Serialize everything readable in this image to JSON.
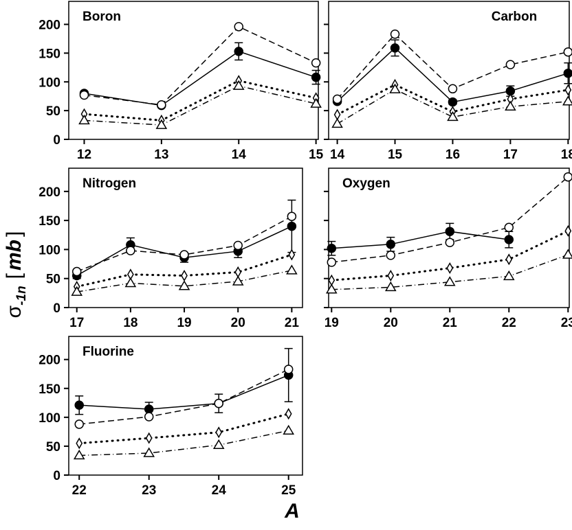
{
  "chart_data": [
    {
      "type": "line",
      "title": "Boron",
      "title_loc": "left",
      "x": [
        12,
        13,
        14,
        15
      ],
      "xlim": [
        11.8,
        15.03
      ],
      "xticks": [
        12,
        13,
        14,
        15
      ],
      "ylim": [
        0,
        240
      ],
      "yticks": [
        0,
        50,
        100,
        150,
        200
      ],
      "series": [
        {
          "color": "#000000",
          "marker": "filled-circle",
          "dash": "solid",
          "values": [
            80,
            59,
            153,
            108
          ],
          "errors": [
            3,
            3,
            15,
            12
          ]
        },
        {
          "color": "#000000",
          "marker": "circle",
          "dash": "dashed",
          "values": [
            77,
            60,
            196,
            133
          ]
        },
        {
          "color": "#000000",
          "marker": "diamond",
          "dash": "dotted",
          "values": [
            44,
            33,
            102,
            72
          ]
        },
        {
          "color": "#000000",
          "marker": "triangle",
          "dash": "dashdot",
          "values": [
            33,
            25,
            93,
            62
          ]
        }
      ]
    },
    {
      "type": "line",
      "title": "Carbon",
      "title_loc": "right",
      "x": [
        14,
        15,
        16,
        17,
        18
      ],
      "xlim": [
        13.85,
        18.02
      ],
      "xticks": [
        14,
        15,
        16,
        17,
        18
      ],
      "ylim": [
        0,
        240
      ],
      "yticks": [
        0,
        50,
        100,
        150,
        200
      ],
      "series": [
        {
          "color": "#000000",
          "marker": "filled-circle",
          "dash": "solid",
          "values": [
            66,
            159,
            65,
            84,
            115
          ],
          "errors": [
            3,
            14,
            4,
            9,
            18
          ]
        },
        {
          "color": "#000000",
          "marker": "circle",
          "dash": "dashed",
          "values": [
            70,
            183,
            88,
            130,
            152
          ]
        },
        {
          "color": "#000000",
          "marker": "diamond",
          "dash": "dotted",
          "values": [
            43,
            95,
            48,
            70,
            86
          ]
        },
        {
          "color": "#000000",
          "marker": "triangle",
          "dash": "dashdot",
          "values": [
            27,
            87,
            39,
            57,
            66
          ]
        }
      ]
    },
    {
      "type": "line",
      "title": "Nitrogen",
      "title_loc": "left",
      "x": [
        17,
        18,
        19,
        20,
        21
      ],
      "xlim": [
        16.85,
        21.2
      ],
      "xticks": [
        17,
        18,
        19,
        20,
        21
      ],
      "ylim": [
        0,
        240
      ],
      "yticks": [
        0,
        50,
        100,
        150,
        200
      ],
      "series": [
        {
          "color": "#000000",
          "marker": "filled-circle",
          "dash": "solid",
          "values": [
            55,
            108,
            86,
            97,
            140
          ],
          "errors": [
            5,
            12,
            8,
            11,
            45
          ]
        },
        {
          "color": "#000000",
          "marker": "circle",
          "dash": "dashed",
          "values": [
            62,
            98,
            91,
            107,
            157
          ]
        },
        {
          "color": "#000000",
          "marker": "diamond",
          "dash": "dotted",
          "values": [
            36,
            57,
            55,
            61,
            91
          ]
        },
        {
          "color": "#000000",
          "marker": "triangle",
          "dash": "dashdot",
          "values": [
            27,
            42,
            37,
            45,
            64
          ]
        }
      ]
    },
    {
      "type": "line",
      "title": "Oxygen",
      "title_loc": "left",
      "x": [
        19,
        20,
        21,
        22,
        23
      ],
      "xlim": [
        18.95,
        23.02
      ],
      "xticks": [
        19,
        20,
        21,
        22,
        23
      ],
      "ylim": [
        0,
        240
      ],
      "yticks": [
        0,
        50,
        100,
        150,
        200
      ],
      "series": [
        {
          "color": "#000000",
          "marker": "filled-circle",
          "dash": "solid",
          "values": [
            102,
            109,
            131,
            117,
            null
          ],
          "errors": [
            12,
            12,
            14,
            14,
            null
          ]
        },
        {
          "color": "#000000",
          "marker": "circle",
          "dash": "dashed",
          "values": [
            78,
            90,
            112,
            138,
            225
          ]
        },
        {
          "color": "#000000",
          "marker": "diamond",
          "dash": "dotted",
          "values": [
            47,
            55,
            68,
            83,
            132
          ]
        },
        {
          "color": "#000000",
          "marker": "triangle",
          "dash": "dashdot",
          "values": [
            31,
            35,
            44,
            54,
            91
          ]
        }
      ]
    },
    {
      "type": "line",
      "title": "Fluorine",
      "title_loc": "left",
      "x": [
        22,
        23,
        24,
        25
      ],
      "xlim": [
        21.85,
        25.2
      ],
      "xticks": [
        22,
        23,
        24,
        25
      ],
      "ylim": [
        0,
        240
      ],
      "yticks": [
        0,
        50,
        100,
        150,
        200
      ],
      "series": [
        {
          "color": "#000000",
          "marker": "filled-circle",
          "dash": "solid",
          "values": [
            121,
            114,
            124,
            173
          ],
          "errors": [
            16,
            12,
            16,
            46
          ]
        },
        {
          "color": "#000000",
          "marker": "circle",
          "dash": "dashed",
          "values": [
            88,
            101,
            124,
            183
          ]
        },
        {
          "color": "#000000",
          "marker": "diamond",
          "dash": "dotted",
          "values": [
            55,
            64,
            74,
            106
          ]
        },
        {
          "color": "#000000",
          "marker": "triangle",
          "dash": "dashdot",
          "values": [
            34,
            38,
            52,
            77
          ]
        }
      ]
    }
  ],
  "ylabel": {
    "symbol": "σ",
    "subscript": "-1n",
    "open": "[",
    "unit": "mb",
    "close": "]"
  },
  "xlabel": "A"
}
